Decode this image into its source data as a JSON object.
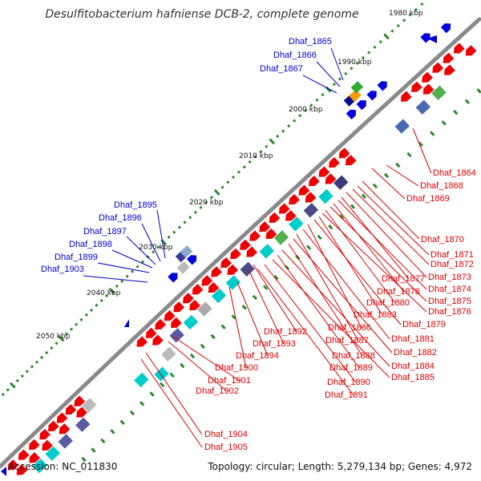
{
  "title": "Desulfitobacterium hafniense DCB-2, complete genome",
  "footer": {
    "accession": "Accession: NC_011830",
    "summary": "Topology: circular; Length: 5,279,134 bp; Genes: 4,972"
  },
  "colors": {
    "backbone": "#888888",
    "forward_gene": "#ee0000",
    "reverse_gene": "#0000dd",
    "forward_label": "#dd0000",
    "reverse_label": "#0000cc",
    "ticks": "#2a8a2a"
  },
  "scale_labels": [
    "1980 kbp",
    "1990 kbp",
    "2000 kbp",
    "2010 kbp",
    "2020 kbp",
    "2030 kbp",
    "2040 kbp",
    "2050 kbp"
  ],
  "outer_labels": [
    "Dhaf_1865",
    "Dhaf_1866",
    "Dhaf_1867",
    "Dhaf_1895",
    "Dhaf_1896",
    "Dhaf_1897",
    "Dhaf_1898",
    "Dhaf_1899",
    "Dhaf_1903"
  ],
  "inner_labels": [
    "Dhaf_1864",
    "Dhaf_1868",
    "Dhaf_1869",
    "Dhaf_1870",
    "Dhaf_1871",
    "Dhaf_1872",
    "Dhaf_1873",
    "Dhaf_1877",
    "Dhaf_1874",
    "Dhaf_1878",
    "Dhaf_1875",
    "Dhaf_1880",
    "Dhaf_1876",
    "Dhaf_1883",
    "Dhaf_1879",
    "Dhaf_1886",
    "Dhaf_1892",
    "Dhaf_1893",
    "Dhaf_1881",
    "Dhaf_1887",
    "Dhaf_1882",
    "Dhaf_1888",
    "Dhaf_1894",
    "Dhaf_1900",
    "Dhaf_1884",
    "Dhaf_1889",
    "Dhaf_1885",
    "Dhaf_1901",
    "Dhaf_1890",
    "Dhaf_1902",
    "Dhaf_1891",
    "Dhaf_1904",
    "Dhaf_1905"
  ]
}
